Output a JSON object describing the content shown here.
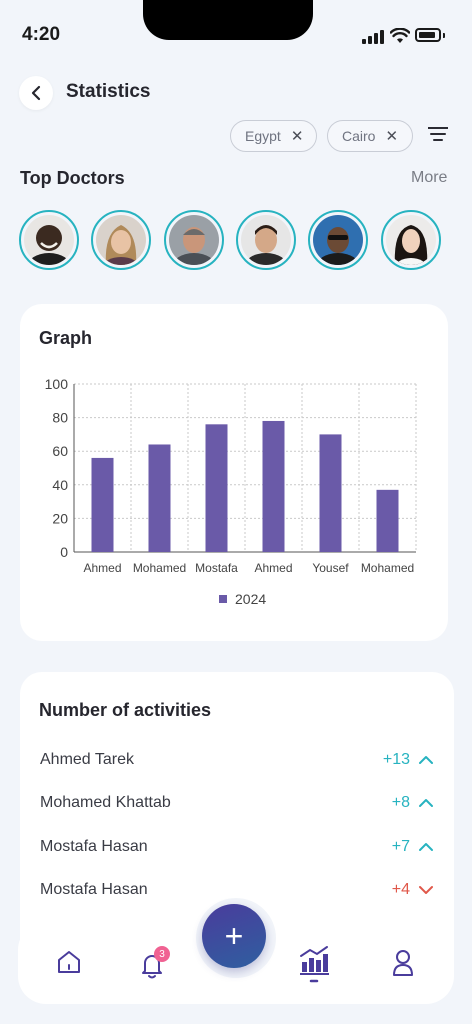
{
  "status_bar": {
    "time": "4:20"
  },
  "header": {
    "title": "Statistics"
  },
  "filters": [
    {
      "label": "Egypt"
    },
    {
      "label": "Cairo"
    }
  ],
  "top_doctors": {
    "title": "Top Doctors",
    "more_label": "More",
    "avatars": [
      "doctor-1",
      "doctor-2",
      "doctor-3",
      "doctor-4",
      "doctor-5",
      "doctor-6"
    ]
  },
  "graph": {
    "title": "Graph"
  },
  "chart_data": {
    "type": "bar",
    "categories": [
      "Ahmed",
      "Mohamed",
      "Mostafa",
      "Ahmed",
      "Yousef",
      "Mohamed"
    ],
    "series": [
      {
        "name": "2024",
        "values": [
          56,
          64,
          76,
          78,
          70,
          37
        ]
      }
    ],
    "ylim": [
      0,
      100
    ],
    "yticks": [
      0,
      20,
      40,
      60,
      80,
      100
    ],
    "grid": true,
    "legend": "bottom-center",
    "bar_color": "#6a5aa8"
  },
  "activities": {
    "title": "Number of activities",
    "rows": [
      {
        "name": "Ahmed Tarek",
        "value": "+13",
        "trend": "up"
      },
      {
        "name": "Mohamed Khattab",
        "value": "+8",
        "trend": "up"
      },
      {
        "name": "Mostafa Hasan",
        "value": "+7",
        "trend": "up"
      },
      {
        "name": "Mostafa Hasan",
        "value": "+4",
        "trend": "down"
      }
    ],
    "up_color": "#27b3c0",
    "down_color": "#e0584a"
  },
  "nav": {
    "notification_count": "3",
    "add_label": "+",
    "icons": [
      "home-icon",
      "bell-icon",
      "add-icon",
      "stats-icon",
      "profile-icon"
    ]
  }
}
